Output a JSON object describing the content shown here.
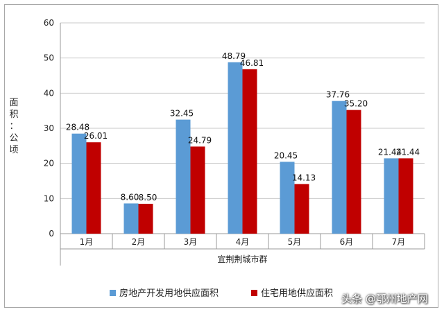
{
  "chart_data": {
    "type": "bar",
    "categories": [
      "1月",
      "2月",
      "3月",
      "4月",
      "5月",
      "6月",
      "7月"
    ],
    "series": [
      {
        "name": "房地产开发用地供应面积",
        "color": "#5b9bd5",
        "values": [
          28.48,
          8.6,
          32.45,
          48.79,
          20.45,
          37.76,
          21.44
        ]
      },
      {
        "name": "住宅用地供应面积",
        "color": "#c00000",
        "values": [
          26.01,
          8.5,
          24.79,
          46.81,
          14.13,
          35.2,
          21.44
        ]
      }
    ],
    "data_labels": [
      [
        "28.48",
        "8.60",
        "32.45",
        "48.79",
        "20.45",
        "37.76",
        "21.44"
      ],
      [
        "26.01",
        "8.50",
        "24.79",
        "46.81",
        "14.13",
        "35.20",
        "21.44"
      ]
    ],
    "xlabel": "宜荆荆城市群",
    "ylabel": "面积：公顷",
    "ylim": [
      0,
      60
    ],
    "yticks": [
      "0",
      "10",
      "20",
      "30",
      "40",
      "50",
      "60"
    ],
    "grid": true,
    "legend": "bottom"
  },
  "watermark": "头条 @鄂州地产网"
}
